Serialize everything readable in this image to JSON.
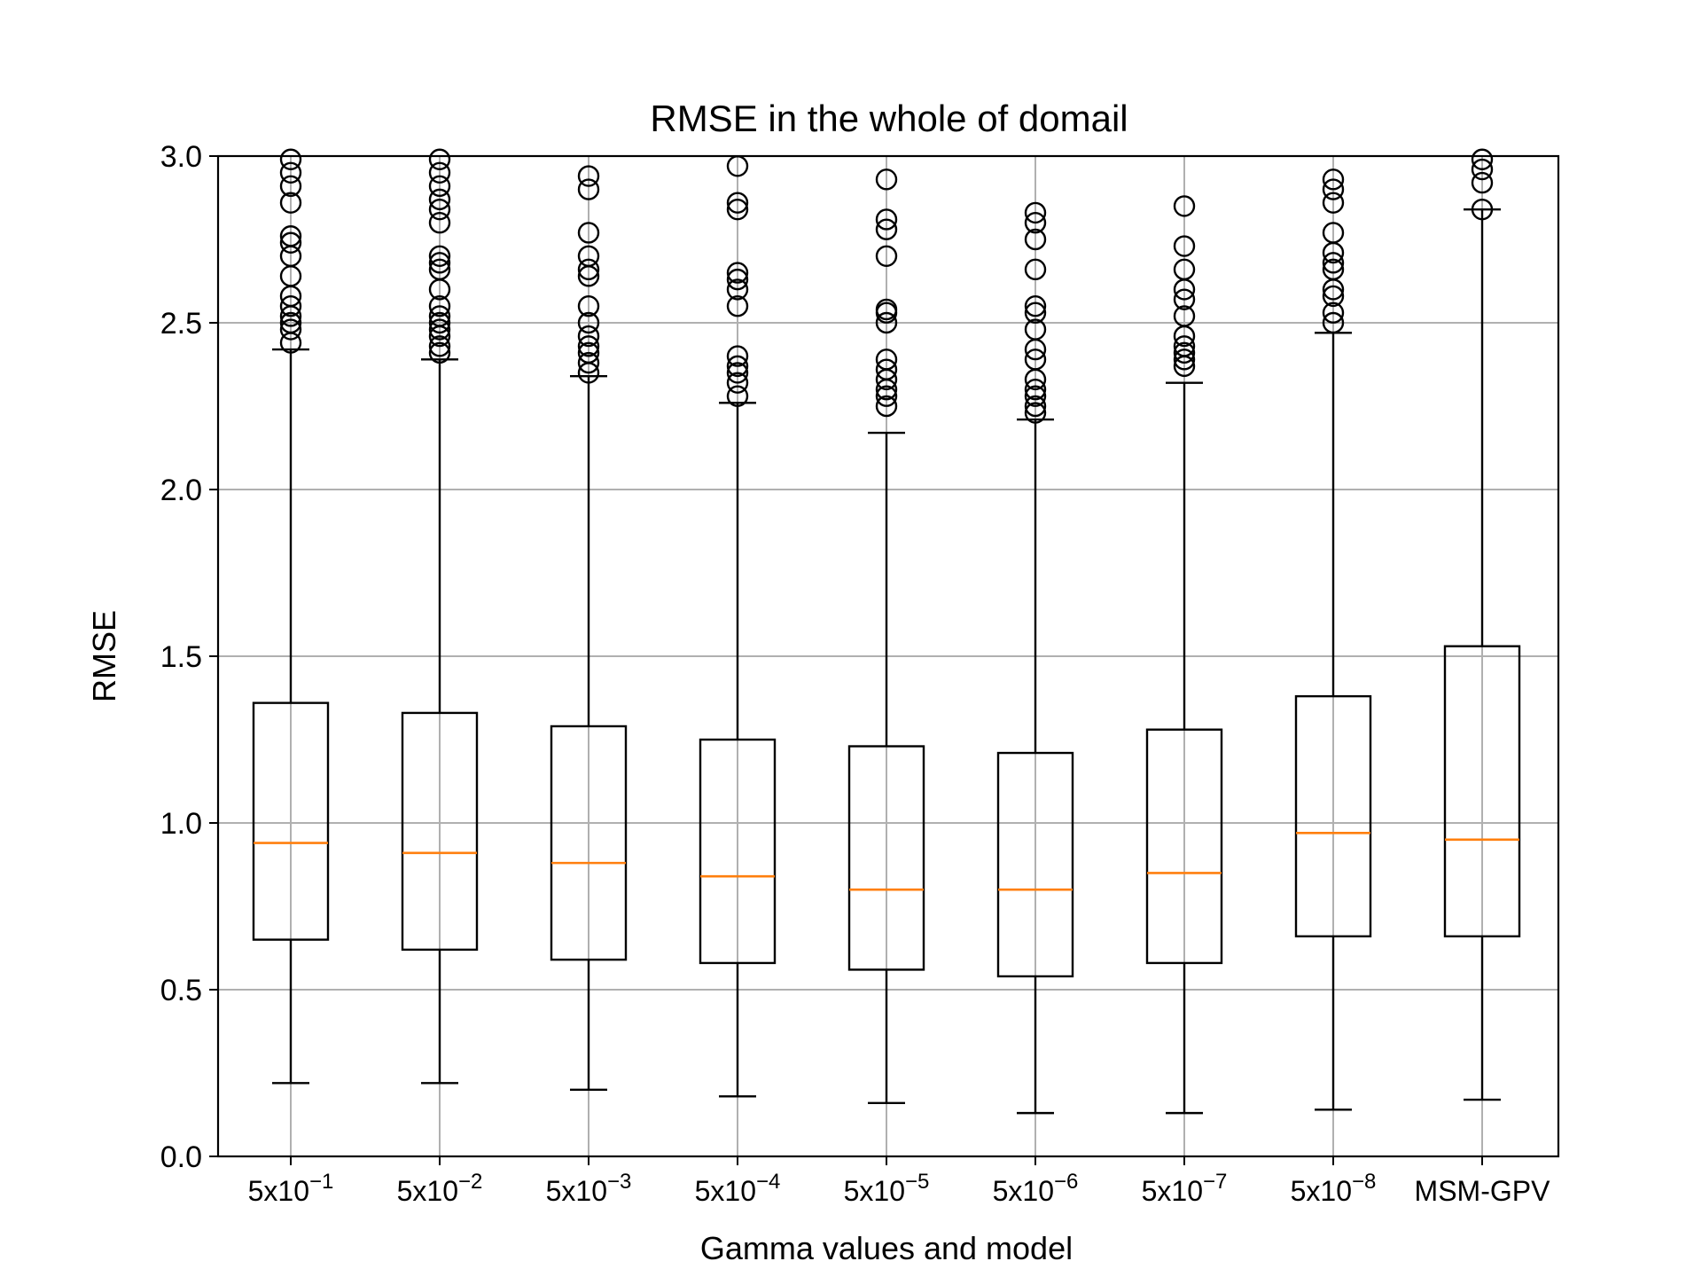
{
  "chart_data": {
    "type": "box",
    "title": "RMSE in the whole of domail",
    "xlabel": "Gamma values and model",
    "ylabel": "RMSE",
    "ylim": [
      0.0,
      3.0
    ],
    "yticks": [
      0.0,
      0.5,
      1.0,
      1.5,
      2.0,
      2.5,
      3.0
    ],
    "ytick_labels": [
      "0.0",
      "0.5",
      "1.0",
      "1.5",
      "2.0",
      "2.5",
      "3.0"
    ],
    "grid": true,
    "colors": {
      "box": "#000000",
      "median": "#ff7f0e",
      "grid": "#b0b0b0"
    },
    "categories": [
      {
        "base": "5x10",
        "exp": "−1"
      },
      {
        "base": "5x10",
        "exp": "−2"
      },
      {
        "base": "5x10",
        "exp": "−3"
      },
      {
        "base": "5x10",
        "exp": "−4"
      },
      {
        "base": "5x10",
        "exp": "−5"
      },
      {
        "base": "5x10",
        "exp": "−6"
      },
      {
        "base": "5x10",
        "exp": "−7"
      },
      {
        "base": "5x10",
        "exp": "−8"
      },
      {
        "base": "MSM-GPV",
        "exp": ""
      }
    ],
    "boxes": [
      {
        "whislo": 0.22,
        "q1": 0.65,
        "med": 0.94,
        "q3": 1.36,
        "whishi": 2.42,
        "fliers": [
          2.44,
          2.48,
          2.5,
          2.52,
          2.55,
          2.58,
          2.64,
          2.7,
          2.74,
          2.76,
          2.86,
          2.91,
          2.95,
          2.99
        ]
      },
      {
        "whislo": 0.22,
        "q1": 0.62,
        "med": 0.91,
        "q3": 1.33,
        "whishi": 2.39,
        "fliers": [
          2.41,
          2.43,
          2.46,
          2.48,
          2.5,
          2.52,
          2.55,
          2.6,
          2.66,
          2.68,
          2.7,
          2.8,
          2.84,
          2.87,
          2.91,
          2.95,
          2.99
        ]
      },
      {
        "whislo": 0.2,
        "q1": 0.59,
        "med": 0.88,
        "q3": 1.29,
        "whishi": 2.34,
        "fliers": [
          2.35,
          2.38,
          2.41,
          2.43,
          2.46,
          2.5,
          2.55,
          2.64,
          2.66,
          2.7,
          2.77,
          2.9,
          2.94
        ]
      },
      {
        "whislo": 0.18,
        "q1": 0.58,
        "med": 0.84,
        "q3": 1.25,
        "whishi": 2.26,
        "fliers": [
          2.28,
          2.32,
          2.35,
          2.37,
          2.4,
          2.55,
          2.6,
          2.63,
          2.65,
          2.84,
          2.86,
          2.97
        ]
      },
      {
        "whislo": 0.16,
        "q1": 0.56,
        "med": 0.8,
        "q3": 1.23,
        "whishi": 2.17,
        "fliers": [
          2.25,
          2.28,
          2.3,
          2.33,
          2.36,
          2.39,
          2.5,
          2.53,
          2.54,
          2.7,
          2.78,
          2.81,
          2.93
        ]
      },
      {
        "whislo": 0.13,
        "q1": 0.54,
        "med": 0.8,
        "q3": 1.21,
        "whishi": 2.21,
        "fliers": [
          2.23,
          2.25,
          2.28,
          2.3,
          2.33,
          2.39,
          2.42,
          2.48,
          2.53,
          2.55,
          2.66,
          2.75,
          2.8,
          2.83
        ]
      },
      {
        "whislo": 0.13,
        "q1": 0.58,
        "med": 0.85,
        "q3": 1.28,
        "whishi": 2.32,
        "fliers": [
          2.37,
          2.39,
          2.41,
          2.43,
          2.46,
          2.52,
          2.57,
          2.6,
          2.66,
          2.73,
          2.85
        ]
      },
      {
        "whislo": 0.14,
        "q1": 0.66,
        "med": 0.97,
        "q3": 1.38,
        "whishi": 2.47,
        "fliers": [
          2.5,
          2.53,
          2.58,
          2.6,
          2.66,
          2.68,
          2.71,
          2.77,
          2.86,
          2.9,
          2.93
        ]
      },
      {
        "whislo": 0.17,
        "q1": 0.66,
        "med": 0.95,
        "q3": 1.53,
        "whishi": 2.84,
        "fliers": [
          2.84,
          2.92,
          2.96,
          2.99
        ]
      }
    ]
  }
}
